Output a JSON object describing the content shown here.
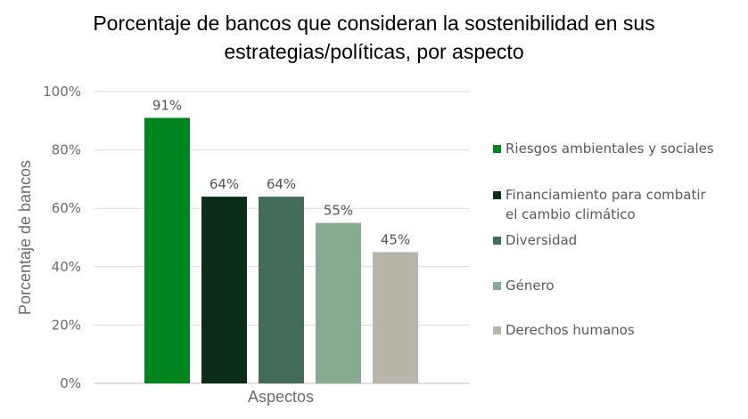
{
  "title_lines": [
    "Porcentaje de bancos que consideran la sostenibilidad en sus",
    "estrategias/políticas, por aspecto"
  ],
  "chart_data": {
    "type": "bar",
    "title": "Porcentaje de bancos que consideran la sostenibilidad en sus estrategias/políticas, por aspecto",
    "xlabel": "Aspectos",
    "ylabel": "Porcentaje de bancos",
    "ylim": [
      0,
      100
    ],
    "yticks": [
      0,
      20,
      40,
      60,
      80,
      100
    ],
    "ytick_labels": [
      "0%",
      "20%",
      "40%",
      "60%",
      "80%",
      "100%"
    ],
    "grid": true,
    "legend_position": "right",
    "series": [
      {
        "name": "Riesgos ambientales y sociales",
        "value": 91,
        "label": "91%",
        "color": "#00841f"
      },
      {
        "name": "Financiamiento para combatir el cambio climático",
        "legend_lines": [
          "Financiamiento para combatir",
          "el cambio climático"
        ],
        "value": 64,
        "label": "64%",
        "color": "#0b2d17"
      },
      {
        "name": "Diversidad",
        "value": 64,
        "label": "64%",
        "color": "#446c5b"
      },
      {
        "name": "Género",
        "value": 55,
        "label": "55%",
        "color": "#86ab91"
      },
      {
        "name": "Derechos humanos",
        "value": 45,
        "label": "45%",
        "color": "#b8b4aa"
      }
    ]
  }
}
